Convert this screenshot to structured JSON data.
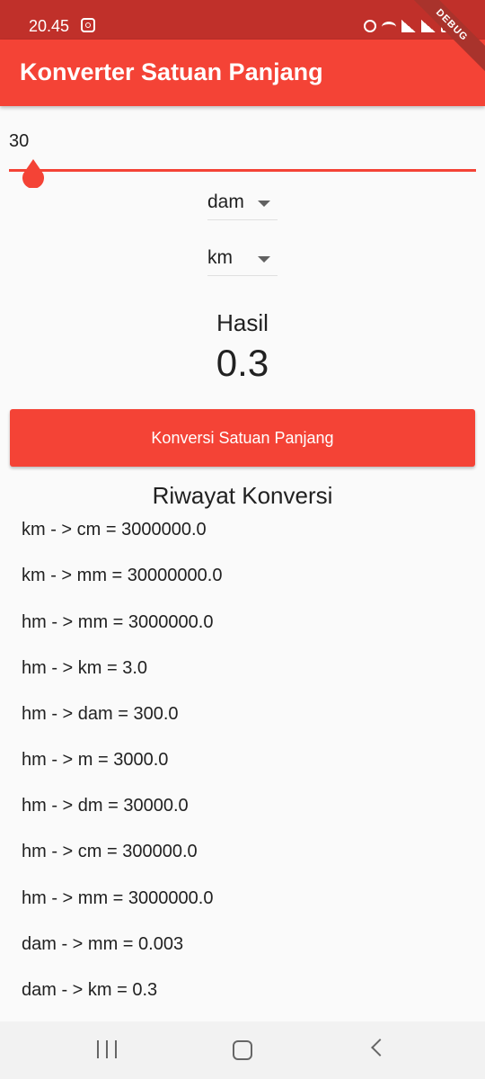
{
  "status_bar": {
    "time": "20.45"
  },
  "app_bar": {
    "title": "Konverter Satuan Panjang",
    "debug_label": "DEBUG"
  },
  "slider": {
    "value_label": "30",
    "level": 0.03
  },
  "dropdown_from": {
    "value": "dam"
  },
  "dropdown_to": {
    "value": "km"
  },
  "result": {
    "label": "Hasil",
    "value": "0.3"
  },
  "convert_button": {
    "label": "Konversi Satuan Panjang"
  },
  "history": {
    "title": "Riwayat Konversi",
    "items": [
      "km - > cm = 3000000.0",
      "km - > mm = 30000000.0",
      "hm - > mm = 3000000.0",
      "hm - > km = 3.0",
      "hm - > dam = 300.0",
      "hm - > m = 3000.0",
      "hm - > dm = 30000.0",
      "hm - > cm = 300000.0",
      "hm - > mm = 3000000.0",
      "dam - > mm = 0.003",
      "dam - > km = 0.3"
    ]
  },
  "colors": {
    "primary": "#f44336",
    "status_bar": "#c0302a"
  }
}
